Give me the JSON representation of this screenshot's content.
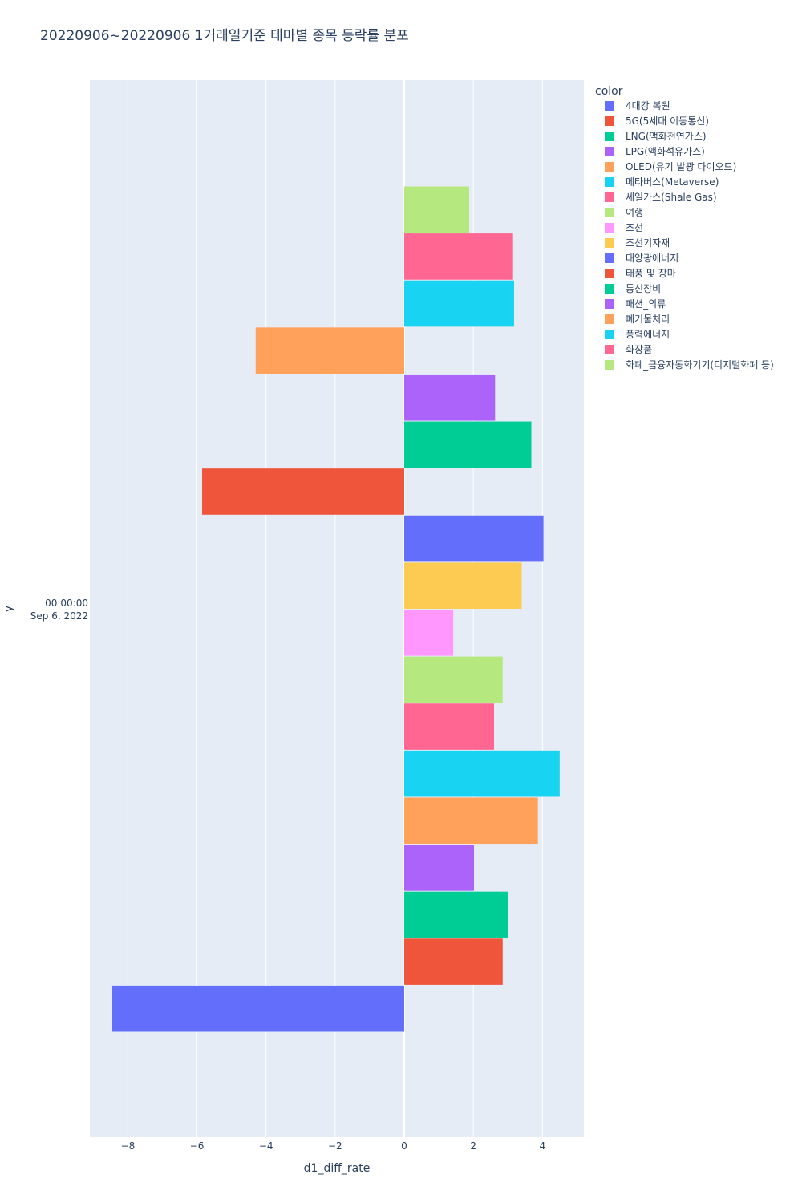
{
  "chart_data": {
    "type": "bar",
    "orientation": "horizontal",
    "title": "20220906~20220906 1거래일기준 테마별 종목 등락률 분포",
    "xlabel": "d1_diff_rate",
    "ylabel": "y",
    "y_category_lines": [
      "00:00:00",
      "Sep 6, 2022"
    ],
    "xlim": [
      -9.1,
      5.2
    ],
    "x_ticks": [
      -8,
      -6,
      -4,
      -2,
      0,
      2,
      4
    ],
    "x_tick_labels": [
      "−8",
      "−6",
      "−4",
      "−2",
      "0",
      "2",
      "4"
    ],
    "grid": true,
    "legend_title": "color",
    "legend_position": "top-right",
    "series": [
      {
        "name": "4대강 복원",
        "value": -8.45,
        "color": "#636efa"
      },
      {
        "name": "5G(5세대 이동통신)",
        "value": 2.85,
        "color": "#EF553B"
      },
      {
        "name": "LNG(액화천연가스)",
        "value": 3.0,
        "color": "#00cc96"
      },
      {
        "name": "LPG(액화석유가스)",
        "value": 2.02,
        "color": "#ab63fa"
      },
      {
        "name": "OLED(유기 발광 다이오드)",
        "value": 3.87,
        "color": "#FFA15A"
      },
      {
        "name": "메타버스(Metaverse)",
        "value": 4.5,
        "color": "#19d3f3"
      },
      {
        "name": "셰일가스(Shale Gas)",
        "value": 2.6,
        "color": "#FF6692"
      },
      {
        "name": "여행",
        "value": 2.85,
        "color": "#B6E880"
      },
      {
        "name": "조선",
        "value": 1.42,
        "color": "#FF97FF"
      },
      {
        "name": "조선기자재",
        "value": 3.4,
        "color": "#FECB52"
      },
      {
        "name": "태양광에너지",
        "value": 4.03,
        "color": "#636efa"
      },
      {
        "name": "태풍 및 장마",
        "value": -5.85,
        "color": "#EF553B"
      },
      {
        "name": "통신장비",
        "value": 3.68,
        "color": "#00cc96"
      },
      {
        "name": "패션_의류",
        "value": 2.63,
        "color": "#ab63fa"
      },
      {
        "name": "폐기물처리",
        "value": -4.3,
        "color": "#FFA15A"
      },
      {
        "name": "풍력에너지",
        "value": 3.18,
        "color": "#19d3f3"
      },
      {
        "name": "화장품",
        "value": 3.15,
        "color": "#FF6692"
      },
      {
        "name": "화폐_금융자동화기기(디지털화폐 등)",
        "value": 1.88,
        "color": "#B6E880"
      }
    ]
  }
}
